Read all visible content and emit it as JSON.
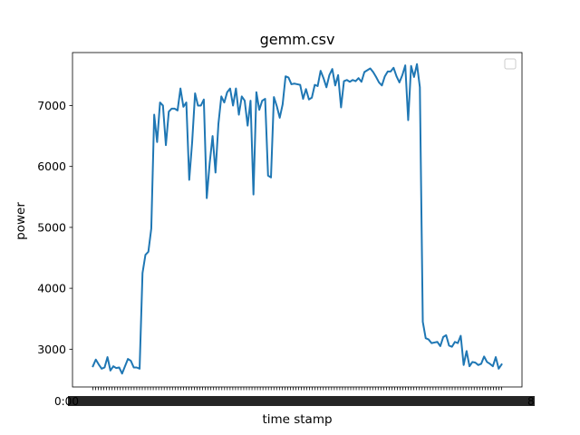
{
  "chart_data": {
    "type": "line",
    "title": "gemm.csv",
    "xlabel": "time stamp",
    "ylabel": "power",
    "ylim": [
      2380,
      7870
    ],
    "yticks": [
      3000,
      4000,
      5000,
      6000,
      7000
    ],
    "x_tick_labels_legible": {
      "first": "0:00",
      "last": "8"
    },
    "x_tick_count": 150,
    "legend": {
      "placement": "top-right",
      "entries": []
    },
    "grid": false,
    "series_color": "#1f77b4",
    "series": [
      {
        "values": [
          2720,
          2830,
          2750,
          2680,
          2700,
          2870,
          2650,
          2720,
          2690,
          2700,
          2600,
          2720,
          2840,
          2810,
          2700,
          2700,
          2680,
          4250,
          4550,
          4600,
          4980,
          6850,
          6400,
          7050,
          7000,
          6350,
          6900,
          6950,
          6950,
          6920,
          7280,
          6980,
          7050,
          5780,
          6400,
          7200,
          7000,
          7000,
          7100,
          5480,
          6050,
          6500,
          5900,
          6700,
          7150,
          7050,
          7220,
          7280,
          7000,
          7280,
          6850,
          7150,
          7080,
          6670,
          7080,
          5540,
          7220,
          6930,
          7080,
          7110,
          5850,
          5820,
          7140,
          6990,
          6800,
          7020,
          7480,
          7460,
          7350,
          7360,
          7350,
          7340,
          7110,
          7270,
          7100,
          7130,
          7340,
          7320,
          7570,
          7450,
          7300,
          7500,
          7600,
          7330,
          7500,
          6970,
          7400,
          7420,
          7390,
          7420,
          7400,
          7450,
          7390,
          7550,
          7580,
          7610,
          7550,
          7470,
          7380,
          7330,
          7480,
          7560,
          7560,
          7620,
          7480,
          7380,
          7500,
          7660,
          6760,
          7650,
          7470,
          7680,
          7300,
          3450,
          3180,
          3160,
          3100,
          3110,
          3120,
          3050,
          3200,
          3230,
          3060,
          3040,
          3120,
          3100,
          3220,
          2740,
          2970,
          2720,
          2790,
          2780,
          2740,
          2760,
          2880,
          2790,
          2760,
          2720,
          2870,
          2680,
          2750
        ]
      }
    ]
  }
}
